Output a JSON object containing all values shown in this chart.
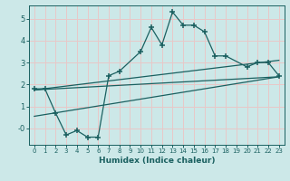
{
  "title": "",
  "xlabel": "Humidex (Indice chaleur)",
  "xlim": [
    -0.5,
    23.5
  ],
  "ylim": [
    -0.75,
    5.6
  ],
  "bg_color": "#cce8e8",
  "grid_color": "#e8c8c8",
  "line_color": "#1a6060",
  "data_x": [
    0,
    1,
    2,
    3,
    4,
    5,
    6,
    7,
    8,
    10,
    11,
    12,
    13,
    14,
    15,
    16,
    17,
    18,
    20,
    21,
    22,
    23
  ],
  "data_y": [
    1.8,
    1.8,
    0.7,
    -0.3,
    -0.1,
    -0.4,
    -0.4,
    2.4,
    2.6,
    3.5,
    4.6,
    3.8,
    5.3,
    4.7,
    4.7,
    4.4,
    3.3,
    3.3,
    2.8,
    3.0,
    3.0,
    2.4
  ],
  "trend1_x": [
    0,
    23
  ],
  "trend1_y": [
    1.75,
    2.35
  ],
  "trend2_x": [
    0,
    23
  ],
  "trend2_y": [
    1.75,
    3.1
  ],
  "trend3_x": [
    0,
    23
  ],
  "trend3_y": [
    0.55,
    2.35
  ],
  "xticks": [
    0,
    1,
    2,
    3,
    4,
    5,
    6,
    7,
    8,
    9,
    10,
    11,
    12,
    13,
    14,
    15,
    16,
    17,
    18,
    19,
    20,
    21,
    22,
    23
  ],
  "yticks": [
    0,
    1,
    2,
    3,
    4,
    5
  ],
  "ytick_labels": [
    "-0",
    "1",
    "2",
    "3",
    "4",
    "5"
  ]
}
